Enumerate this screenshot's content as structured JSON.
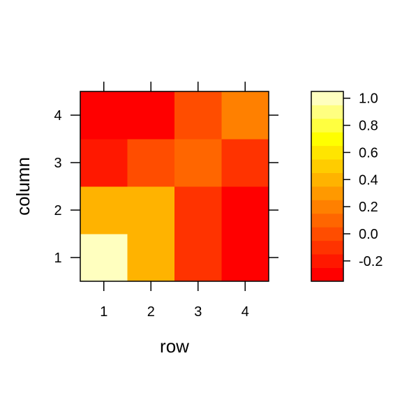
{
  "chart_data": {
    "type": "heatmap",
    "title": "",
    "xlabel": "row",
    "ylabel": "column",
    "x_categories": [
      "1",
      "2",
      "3",
      "4"
    ],
    "y_categories": [
      "1",
      "2",
      "3",
      "4"
    ],
    "values": [
      [
        1.0,
        0.37,
        -0.07,
        -0.27
      ],
      [
        0.37,
        0.37,
        -0.07,
        -0.27
      ],
      [
        -0.17,
        -0.03,
        0.07,
        -0.07
      ],
      [
        -0.27,
        -0.27,
        -0.05,
        0.16
      ]
    ],
    "value_layout": "values[column_index][row_index], column 1 at bottom",
    "colorbar": {
      "range": [
        -0.35,
        1.05
      ],
      "bins": [
        -0.35,
        -0.25,
        -0.15,
        -0.05,
        0.05,
        0.15,
        0.25,
        0.35,
        0.45,
        0.55,
        0.65,
        0.75,
        0.85,
        0.95,
        1.05
      ],
      "colors": [
        "#FF0000",
        "#FF1800",
        "#FF3300",
        "#FF4D00",
        "#FF6600",
        "#FF8000",
        "#FF9900",
        "#FFB300",
        "#FFCC00",
        "#FFE500",
        "#FFFF00",
        "#FFFF40",
        "#FFFF80",
        "#FFFFBF"
      ],
      "ticks": [
        "-0.2",
        "0.0",
        "0.2",
        "0.4",
        "0.6",
        "0.8",
        "1.0"
      ],
      "tick_values": [
        -0.2,
        0.0,
        0.2,
        0.4,
        0.6,
        0.8,
        1.0
      ]
    },
    "grid": false,
    "legend": "right"
  }
}
